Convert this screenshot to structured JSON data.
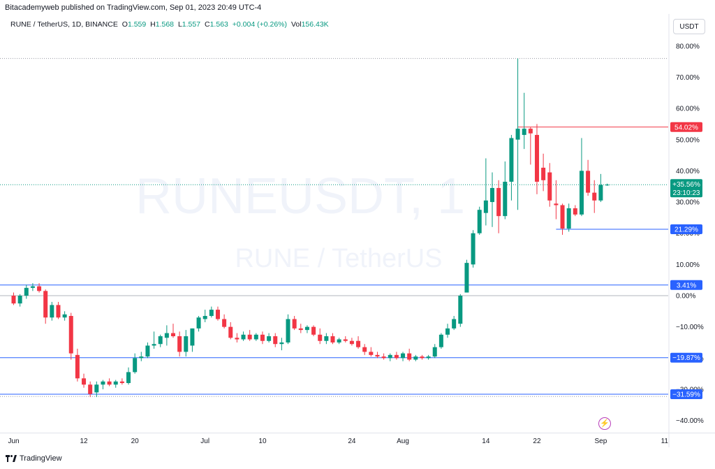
{
  "header": {
    "caption": "Bitacademyweb published on TradingView.com, Sep 01, 2023 20:49 UTC-4",
    "symbol_line": "RUNE / TetherUS, 1D, BINANCE",
    "open_label": "O",
    "open": "1.559",
    "high_label": "H",
    "high": "1.568",
    "low_label": "L",
    "low": "1.557",
    "close_label": "C",
    "close": "1.563",
    "change": "+0.004 (+0.26%)",
    "vol_label": "Vol",
    "vol": "156.43K",
    "currency_button": "USDT"
  },
  "watermark": {
    "line1": "RUNEUSDT, 1",
    "line2": "RUNE / TetherUS"
  },
  "footer": {
    "logo_text": "TradingView"
  },
  "chart_data": {
    "type": "candlestick",
    "symbol": "RUNEUSDT",
    "interval": "1D",
    "y_unit": "%",
    "ylim": [
      -42,
      82
    ],
    "y_ticks": [
      80,
      70,
      60,
      50,
      40,
      30,
      20,
      10,
      0,
      -10,
      -20,
      -30,
      -40
    ],
    "y_tick_labels": [
      "80.00%",
      "70.00%",
      "60.00%",
      "50.00%",
      "40.00%",
      "30.00%",
      "20.00%",
      "10.00%",
      "0.00%",
      "−10.00%",
      "−20.00%",
      "−30.00%",
      "−40.00%"
    ],
    "x_ticks": [
      {
        "label": "Jun",
        "day": 1
      },
      {
        "label": "12",
        "day": 12
      },
      {
        "label": "20",
        "day": 20
      },
      {
        "label": "Jul",
        "day": 31
      },
      {
        "label": "10",
        "day": 40
      },
      {
        "label": "24",
        "day": 54
      },
      {
        "label": "Aug",
        "day": 62
      },
      {
        "label": "14",
        "day": 75
      },
      {
        "label": "22",
        "day": 83
      },
      {
        "label": "Sep",
        "day": 93
      },
      {
        "label": "11",
        "day": 103
      }
    ],
    "horizontal_lines": [
      {
        "value": 3.41,
        "label": "3.41%",
        "color": "#2962ff"
      },
      {
        "value": -19.87,
        "label": "−19.87%",
        "color": "#2962ff"
      },
      {
        "value": -31.59,
        "label": "−31.59%",
        "color": "#2962ff"
      }
    ],
    "segments": [
      {
        "value": 54.02,
        "label": "54.02%",
        "color": "#f23645",
        "from_day": 80
      },
      {
        "value": 21.29,
        "label": "21.29%",
        "color": "#2962ff",
        "from_day": 86
      }
    ],
    "dotted_levels": [
      76.0,
      -32.3
    ],
    "current": {
      "value": 35.56,
      "label": "+35.56%",
      "countdown": "23:10:23",
      "color": "#089981"
    },
    "colors": {
      "up": "#089981",
      "down": "#f23645"
    },
    "candles": [
      {
        "day": 1,
        "o": 0.0,
        "h": 1.0,
        "l": -3.0,
        "c": -2.5
      },
      {
        "day": 2,
        "o": -2.5,
        "h": 0.5,
        "l": -3.5,
        "c": 0.0
      },
      {
        "day": 3,
        "o": 0.0,
        "h": 3.5,
        "l": -1.0,
        "c": 2.5
      },
      {
        "day": 4,
        "o": 2.5,
        "h": 4.0,
        "l": 1.5,
        "c": 3.0
      },
      {
        "day": 5,
        "o": 3.0,
        "h": 4.0,
        "l": 1.0,
        "c": 1.5
      },
      {
        "day": 6,
        "o": 1.5,
        "h": 2.0,
        "l": -9.0,
        "c": -7.0
      },
      {
        "day": 7,
        "o": -7.0,
        "h": -2.0,
        "l": -8.0,
        "c": -3.0
      },
      {
        "day": 8,
        "o": -3.0,
        "h": -2.0,
        "l": -7.5,
        "c": -7.0
      },
      {
        "day": 9,
        "o": -7.0,
        "h": -5.0,
        "l": -8.0,
        "c": -6.0
      },
      {
        "day": 10,
        "o": -6.5,
        "h": -5.5,
        "l": -20.5,
        "c": -18.5
      },
      {
        "day": 11,
        "o": -19.0,
        "h": -17.0,
        "l": -27.5,
        "c": -26.5
      },
      {
        "day": 12,
        "o": -26.5,
        "h": -25.0,
        "l": -29.5,
        "c": -28.5
      },
      {
        "day": 13,
        "o": -28.5,
        "h": -27.5,
        "l": -32.5,
        "c": -31.5
      },
      {
        "day": 14,
        "o": -31.0,
        "h": -27.5,
        "l": -32.5,
        "c": -28.5
      },
      {
        "day": 15,
        "o": -28.5,
        "h": -27.0,
        "l": -30.0,
        "c": -27.5
      },
      {
        "day": 16,
        "o": -27.5,
        "h": -26.5,
        "l": -29.0,
        "c": -28.5
      },
      {
        "day": 17,
        "o": -28.5,
        "h": -27.0,
        "l": -29.5,
        "c": -27.5
      },
      {
        "day": 18,
        "o": -27.5,
        "h": -26.5,
        "l": -28.5,
        "c": -28.0
      },
      {
        "day": 19,
        "o": -28.0,
        "h": -23.0,
        "l": -28.5,
        "c": -24.5
      },
      {
        "day": 20,
        "o": -24.5,
        "h": -18.5,
        "l": -25.0,
        "c": -20.0
      },
      {
        "day": 21,
        "o": -20.0,
        "h": -18.0,
        "l": -21.0,
        "c": -19.5
      },
      {
        "day": 22,
        "o": -19.5,
        "h": -15.0,
        "l": -20.0,
        "c": -16.0
      },
      {
        "day": 23,
        "o": -16.0,
        "h": -11.5,
        "l": -17.0,
        "c": -15.5
      },
      {
        "day": 24,
        "o": -15.5,
        "h": -12.5,
        "l": -16.5,
        "c": -13.0
      },
      {
        "day": 25,
        "o": -13.5,
        "h": -9.5,
        "l": -16.0,
        "c": -12.0
      },
      {
        "day": 26,
        "o": -12.0,
        "h": -9.0,
        "l": -13.5,
        "c": -13.0
      },
      {
        "day": 27,
        "o": -13.0,
        "h": -11.5,
        "l": -19.5,
        "c": -18.0
      },
      {
        "day": 28,
        "o": -18.0,
        "h": -11.0,
        "l": -19.5,
        "c": -13.0
      },
      {
        "day": 29,
        "o": -16.0,
        "h": -10.5,
        "l": -18.0,
        "c": -10.5
      },
      {
        "day": 30,
        "o": -10.5,
        "h": -6.5,
        "l": -11.5,
        "c": -7.0
      },
      {
        "day": 31,
        "o": -7.5,
        "h": -4.5,
        "l": -8.5,
        "c": -6.5
      },
      {
        "day": 32,
        "o": -6.5,
        "h": -3.5,
        "l": -7.0,
        "c": -4.5
      },
      {
        "day": 33,
        "o": -4.5,
        "h": -3.5,
        "l": -8.0,
        "c": -7.5
      },
      {
        "day": 34,
        "o": -7.5,
        "h": -6.0,
        "l": -10.5,
        "c": -10.0
      },
      {
        "day": 35,
        "o": -10.0,
        "h": -8.5,
        "l": -14.0,
        "c": -13.5
      },
      {
        "day": 36,
        "o": -13.5,
        "h": -12.0,
        "l": -15.0,
        "c": -14.0
      },
      {
        "day": 37,
        "o": -14.0,
        "h": -11.5,
        "l": -14.5,
        "c": -12.5
      },
      {
        "day": 38,
        "o": -12.5,
        "h": -11.0,
        "l": -14.5,
        "c": -14.0
      },
      {
        "day": 39,
        "o": -14.0,
        "h": -12.0,
        "l": -14.5,
        "c": -12.5
      },
      {
        "day": 40,
        "o": -12.5,
        "h": -11.5,
        "l": -15.5,
        "c": -14.5
      },
      {
        "day": 41,
        "o": -14.5,
        "h": -12.0,
        "l": -15.0,
        "c": -13.0
      },
      {
        "day": 42,
        "o": -13.0,
        "h": -12.0,
        "l": -16.5,
        "c": -15.5
      },
      {
        "day": 43,
        "o": -15.5,
        "h": -13.5,
        "l": -17.5,
        "c": -15.0
      },
      {
        "day": 44,
        "o": -15.0,
        "h": -6.0,
        "l": -15.5,
        "c": -7.5
      },
      {
        "day": 45,
        "o": -7.5,
        "h": -6.5,
        "l": -11.0,
        "c": -10.5
      },
      {
        "day": 46,
        "o": -10.5,
        "h": -9.0,
        "l": -12.0,
        "c": -11.0
      },
      {
        "day": 47,
        "o": -11.0,
        "h": -9.5,
        "l": -12.0,
        "c": -10.0
      },
      {
        "day": 48,
        "o": -10.0,
        "h": -9.5,
        "l": -13.0,
        "c": -12.5
      },
      {
        "day": 49,
        "o": -12.5,
        "h": -10.5,
        "l": -15.5,
        "c": -14.5
      },
      {
        "day": 50,
        "o": -14.5,
        "h": -12.0,
        "l": -15.5,
        "c": -13.0
      },
      {
        "day": 51,
        "o": -13.0,
        "h": -12.0,
        "l": -15.5,
        "c": -15.0
      },
      {
        "day": 52,
        "o": -15.0,
        "h": -13.5,
        "l": -15.5,
        "c": -14.0
      },
      {
        "day": 53,
        "o": -14.0,
        "h": -13.0,
        "l": -15.0,
        "c": -14.5
      },
      {
        "day": 54,
        "o": -14.5,
        "h": -13.5,
        "l": -16.0,
        "c": -15.5
      },
      {
        "day": 55,
        "o": -14.5,
        "h": -13.0,
        "l": -17.0,
        "c": -16.5
      },
      {
        "day": 56,
        "o": -16.5,
        "h": -15.5,
        "l": -19.0,
        "c": -18.0
      },
      {
        "day": 57,
        "o": -18.0,
        "h": -16.5,
        "l": -19.5,
        "c": -19.0
      },
      {
        "day": 58,
        "o": -19.0,
        "h": -18.0,
        "l": -20.0,
        "c": -19.5
      },
      {
        "day": 59,
        "o": -19.5,
        "h": -18.5,
        "l": -20.5,
        "c": -20.0
      },
      {
        "day": 60,
        "o": -20.0,
        "h": -18.5,
        "l": -21.0,
        "c": -19.0
      },
      {
        "day": 61,
        "o": -19.0,
        "h": -18.0,
        "l": -20.5,
        "c": -20.0
      },
      {
        "day": 62,
        "o": -20.0,
        "h": -18.0,
        "l": -21.0,
        "c": -18.5
      },
      {
        "day": 63,
        "o": -18.5,
        "h": -17.0,
        "l": -21.0,
        "c": -20.5
      },
      {
        "day": 64,
        "o": -20.5,
        "h": -19.0,
        "l": -21.0,
        "c": -19.5
      },
      {
        "day": 65,
        "o": -19.5,
        "h": -19.0,
        "l": -20.5,
        "c": -20.0
      },
      {
        "day": 66,
        "o": -20.0,
        "h": -19.0,
        "l": -20.5,
        "c": -19.5
      },
      {
        "day": 67,
        "o": -19.5,
        "h": -15.5,
        "l": -20.0,
        "c": -16.5
      },
      {
        "day": 68,
        "o": -16.5,
        "h": -12.0,
        "l": -17.0,
        "c": -12.5
      },
      {
        "day": 69,
        "o": -12.5,
        "h": -9.0,
        "l": -13.5,
        "c": -10.5
      },
      {
        "day": 70,
        "o": -10.5,
        "h": -6.5,
        "l": -11.0,
        "c": -7.5
      },
      {
        "day": 71,
        "o": -9.0,
        "h": 0.5,
        "l": -10.0,
        "c": 0.0
      },
      {
        "day": 72,
        "o": 1.0,
        "h": 11.5,
        "l": 1.0,
        "c": 10.5
      },
      {
        "day": 73,
        "o": 10.0,
        "h": 21.0,
        "l": 9.0,
        "c": 20.0
      },
      {
        "day": 74,
        "o": 20.0,
        "h": 28.5,
        "l": 19.5,
        "c": 27.5
      },
      {
        "day": 75,
        "o": 26.5,
        "h": 44.0,
        "l": 22.5,
        "c": 30.5
      },
      {
        "day": 76,
        "o": 30.0,
        "h": 39.5,
        "l": 22.0,
        "c": 34.5
      },
      {
        "day": 77,
        "o": 34.5,
        "h": 37.0,
        "l": 20.0,
        "c": 25.5
      },
      {
        "day": 78,
        "o": 25.5,
        "h": 43.0,
        "l": 24.5,
        "c": 36.5
      },
      {
        "day": 79,
        "o": 36.5,
        "h": 51.5,
        "l": 30.5,
        "c": 50.5
      },
      {
        "day": 80,
        "o": 50.0,
        "h": 76.0,
        "l": 27.5,
        "c": 53.5
      },
      {
        "day": 81,
        "o": 51.5,
        "h": 65.0,
        "l": 47.0,
        "c": 53.5
      },
      {
        "day": 82,
        "o": 53.5,
        "h": 54.0,
        "l": 42.0,
        "c": 52.0
      },
      {
        "day": 83,
        "o": 51.5,
        "h": 55.0,
        "l": 32.5,
        "c": 36.5
      },
      {
        "day": 84,
        "o": 41.0,
        "h": 45.5,
        "l": 33.5,
        "c": 37.0
      },
      {
        "day": 85,
        "o": 39.5,
        "h": 42.5,
        "l": 28.5,
        "c": 30.5
      },
      {
        "day": 86,
        "o": 29.5,
        "h": 37.0,
        "l": 24.5,
        "c": 29.0
      },
      {
        "day": 87,
        "o": 29.0,
        "h": 29.5,
        "l": 19.5,
        "c": 21.5
      },
      {
        "day": 88,
        "o": 21.5,
        "h": 29.5,
        "l": 20.5,
        "c": 28.0
      },
      {
        "day": 89,
        "o": 28.0,
        "h": 29.0,
        "l": 25.5,
        "c": 26.0
      },
      {
        "day": 90,
        "o": 26.0,
        "h": 50.5,
        "l": 25.5,
        "c": 40.0
      },
      {
        "day": 91,
        "o": 40.0,
        "h": 43.5,
        "l": 32.0,
        "c": 33.0
      },
      {
        "day": 92,
        "o": 33.0,
        "h": 37.0,
        "l": 26.5,
        "c": 30.5
      },
      {
        "day": 93,
        "o": 30.5,
        "h": 39.0,
        "l": 30.0,
        "c": 35.5
      },
      {
        "day": 94,
        "o": 35.4,
        "h": 35.9,
        "l": 35.2,
        "c": 35.56
      }
    ]
  }
}
